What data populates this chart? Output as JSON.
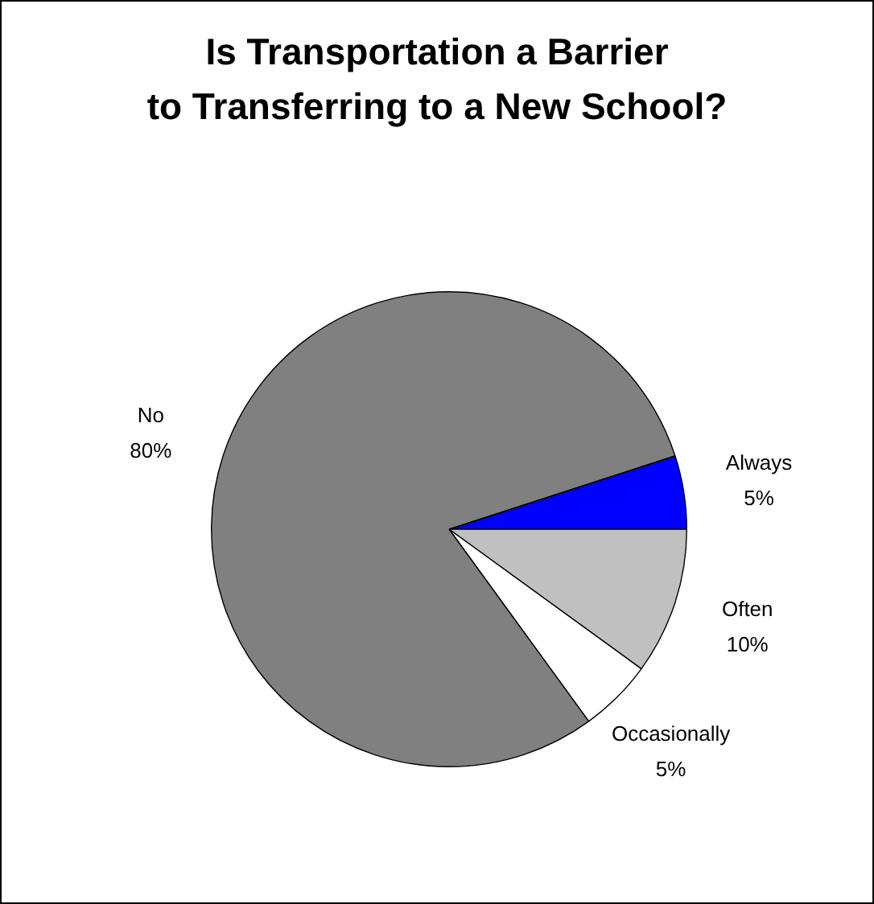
{
  "chart_data": {
    "type": "pie",
    "title": "Is Transportation a Barrier\nto Transferring to a New School?",
    "categories": [
      "Always",
      "Often",
      "Occasionally",
      "No"
    ],
    "values": [
      5,
      10,
      5,
      80
    ],
    "colors": [
      "#0000ff",
      "#c0c0c0",
      "#ffffff",
      "#808080"
    ],
    "value_labels": [
      "5%",
      "10%",
      "5%",
      "80%"
    ],
    "legend": false
  }
}
